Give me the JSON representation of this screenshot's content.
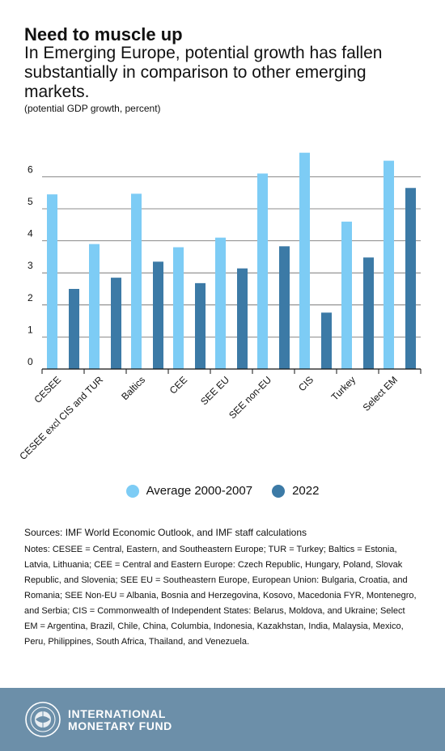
{
  "header": {
    "title": "Need to muscle up",
    "subtitle": "In Emerging Europe, potential growth has fallen substantially in comparison to other emerging markets.",
    "unit_note": "(potential GDP growth, percent)"
  },
  "chart_data": {
    "type": "bar",
    "categories": [
      "CESEE",
      "CESEE excl CIS and TUR",
      "Baltics",
      "CEE",
      "SEE EU",
      "SEE non-EU",
      "CIS",
      "Turkey",
      "Select EM"
    ],
    "series": [
      {
        "name": "Average 2000-2007",
        "color": "#7dccf5",
        "values": [
          5.45,
          3.9,
          5.47,
          3.8,
          4.1,
          6.1,
          6.75,
          4.6,
          6.5
        ]
      },
      {
        "name": "2022",
        "color": "#3c7aa6",
        "values": [
          2.5,
          2.85,
          3.35,
          2.68,
          3.14,
          3.83,
          1.76,
          3.48,
          5.65
        ]
      }
    ],
    "y_ticks": [
      "0",
      "1",
      "2",
      "3",
      "4",
      "5",
      "6"
    ],
    "ylim": [
      0,
      7
    ],
    "grid": true,
    "legend": "bottom"
  },
  "notes": {
    "sources": "Sources: IMF World Economic Outlook, and IMF staff calculations",
    "text": "Notes: CESEE = Central, Eastern, and Southeastern Europe; TUR = Turkey; Baltics = Estonia, Latvia, Lithuania; CEE = Central and Eastern Europe: Czech Republic, Hungary, Poland, Slovak Republic, and Slovenia; SEE EU = Southeastern Europe, European Union: Bulgaria, Croatia, and Romania; SEE Non-EU = Albania, Bosnia and Herzegovina, Kosovo, Macedonia FYR, Montenegro, and Serbia; CIS = Commonwealth of Independent States: Belarus, Moldova, and Ukraine;  Select EM = Argentina, Brazil, Chile, China, Columbia, Indonesia, Kazakhstan, India, Malaysia, Mexico, Peru, Philippines, South Africa, Thailand, and Venezuela."
  },
  "footer": {
    "org_line1": "INTERNATIONAL",
    "org_line2": "MONETARY FUND",
    "seal_icon": "imf-seal-icon",
    "background": "#6c8fa9"
  }
}
